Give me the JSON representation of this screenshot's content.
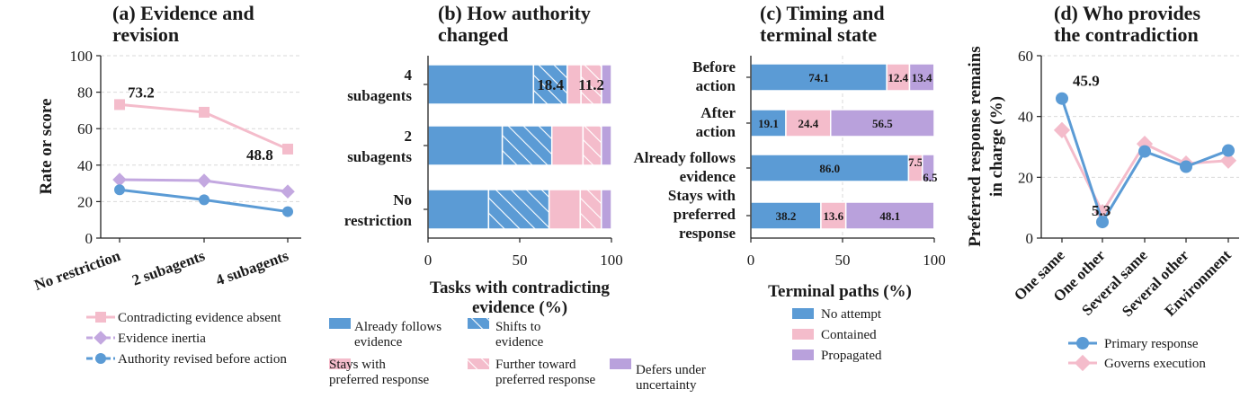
{
  "colors": {
    "blue": "#5b9bd5",
    "pink": "#f4bccb",
    "purple": "#b9a1dc",
    "pink_line": "#f4bccb",
    "purple_line": "#c3a8e0",
    "blue_line": "#5b9bd5"
  },
  "chart_data": [
    {
      "panel": "a",
      "type": "line",
      "title": "(a) Evidence and revision",
      "title_lines": [
        "(a) Evidence and",
        "revision"
      ],
      "ylabel": "Rate or score",
      "xlabel": "",
      "categories": [
        "No restriction",
        "2 subagents",
        "4 subagents"
      ],
      "ylim": [
        0,
        100
      ],
      "yticks": [
        0,
        20,
        40,
        60,
        80,
        100
      ],
      "grid": true,
      "series": [
        {
          "name": "Contradicting evidence absent",
          "values": [
            73.2,
            69,
            48.8
          ],
          "marker": "square",
          "color": "#f4bccb",
          "style": "solid"
        },
        {
          "name": "Evidence inertia",
          "values": [
            32,
            31.5,
            25.5
          ],
          "marker": "diamond",
          "color": "#c3a8e0",
          "style": "solid"
        },
        {
          "name": "Authority revised before action",
          "values": [
            26.5,
            21,
            14.5
          ],
          "marker": "circle",
          "color": "#5b9bd5",
          "style": "solid"
        }
      ],
      "annotations": [
        {
          "text": "73.2",
          "series": 0,
          "index": 0
        },
        {
          "text": "48.8",
          "series": 0,
          "index": 2
        }
      ],
      "legend": "below"
    },
    {
      "panel": "b",
      "type": "bar",
      "orientation": "horizontal-stacked",
      "title": "(b) How authority changed",
      "title_lines": [
        "(b) How authority",
        "changed"
      ],
      "xlabel": "Tasks with contradicting evidence (%)",
      "xlabel_lines": [
        "Tasks with contradicting",
        "evidence (%)"
      ],
      "ylabel": "",
      "categories": [
        "4 subagents",
        "2 subagents",
        "No restriction"
      ],
      "category_lines": [
        [
          "4",
          "subagents"
        ],
        [
          "2",
          "subagents"
        ],
        [
          "No",
          "restriction"
        ]
      ],
      "xlim": [
        0,
        100
      ],
      "xticks": [
        0,
        50,
        100
      ],
      "series": [
        {
          "name": "Already follows evidence",
          "values": [
            57.5,
            40.5,
            33
          ],
          "color": "#5b9bd5",
          "hatch": false
        },
        {
          "name": "Shifts to evidence",
          "values": [
            18.4,
            27,
            33
          ],
          "color": "#5b9bd5",
          "hatch": true
        },
        {
          "name": "Stays with preferred response",
          "values": [
            7.5,
            17,
            17
          ],
          "color": "#f4bccb",
          "hatch": false
        },
        {
          "name": "Further toward preferred response",
          "values": [
            11.2,
            10,
            11.5
          ],
          "color": "#f4bccb",
          "hatch": true
        },
        {
          "name": "Defers under uncertainty",
          "values": [
            5.4,
            5.5,
            5.5
          ],
          "color": "#b9a1dc",
          "hatch": false
        }
      ],
      "bar_labels": [
        {
          "category": 0,
          "series": 1,
          "text": "18.4"
        },
        {
          "category": 0,
          "series": 3,
          "text": "11.2"
        }
      ],
      "legend": "below"
    },
    {
      "panel": "c",
      "type": "bar",
      "orientation": "horizontal-stacked",
      "title": "(c) Timing and terminal state",
      "title_lines": [
        "(c) Timing and",
        "terminal state"
      ],
      "xlabel": "Terminal paths (%)",
      "ylabel": "",
      "categories": [
        "Before action",
        "After action",
        "Already follows evidence",
        "Stays with preferred response"
      ],
      "category_lines": [
        [
          "Before",
          "action"
        ],
        [
          "After",
          "action"
        ],
        [
          "Already follows",
          "evidence"
        ],
        [
          "Stays with",
          "preferred",
          "response"
        ]
      ],
      "xlim": [
        0,
        100
      ],
      "xticks": [
        0,
        50,
        100
      ],
      "series": [
        {
          "name": "No attempt",
          "values": [
            74.1,
            19.1,
            86.0,
            38.2
          ],
          "color": "#5b9bd5"
        },
        {
          "name": "Contained",
          "values": [
            12.4,
            24.4,
            7.5,
            13.6
          ],
          "color": "#f4bccb"
        },
        {
          "name": "Propagated",
          "values": [
            13.4,
            56.5,
            6.5,
            48.1
          ],
          "color": "#b9a1dc"
        }
      ],
      "bar_labels": [
        [
          "74.1",
          "12.4",
          "13.4"
        ],
        [
          "19.1",
          "24.4",
          "56.5"
        ],
        [
          "86.0",
          "7.5",
          "6.5"
        ],
        [
          "38.2",
          "13.6",
          "48.1"
        ]
      ],
      "legend": "below"
    },
    {
      "panel": "d",
      "type": "line",
      "title": "(d) Who provides the contradiction",
      "title_lines": [
        "(d) Who provides",
        "the contradiction"
      ],
      "ylabel": "Preferred response remains in charge (%)",
      "ylabel_lines": [
        "Preferred response remains",
        "in charge (%)"
      ],
      "xlabel": "",
      "categories": [
        "One same",
        "One other",
        "Several same",
        "Several other",
        "Environment"
      ],
      "ylim": [
        0,
        60
      ],
      "yticks": [
        0,
        20,
        40,
        60
      ],
      "grid": true,
      "series": [
        {
          "name": "Primary response",
          "values": [
            45.9,
            5.3,
            28.5,
            23.5,
            28.8
          ],
          "marker": "circle",
          "color": "#5b9bd5"
        },
        {
          "name": "Governs execution",
          "values": [
            35.5,
            8.5,
            31.0,
            24.5,
            25.5
          ],
          "marker": "diamond",
          "color": "#f4bccb"
        }
      ],
      "annotations": [
        {
          "text": "45.9",
          "series": 0,
          "index": 0
        },
        {
          "text": "5.3",
          "series": 0,
          "index": 1
        }
      ],
      "legend": "below"
    }
  ]
}
